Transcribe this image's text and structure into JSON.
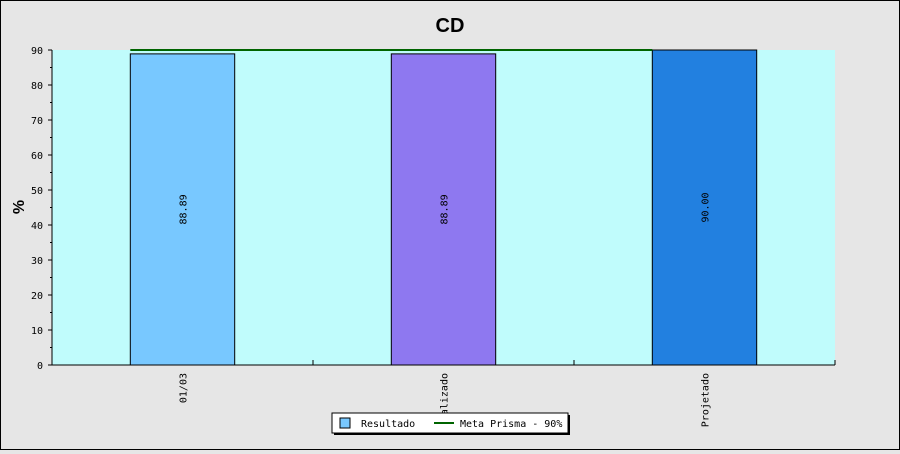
{
  "chart_data": {
    "type": "bar",
    "title": "CD",
    "ylabel": "%",
    "xlabel": "",
    "ylim": [
      0,
      90
    ],
    "yticks": [
      0,
      10,
      20,
      30,
      40,
      50,
      60,
      70,
      80,
      90
    ],
    "categories": [
      "01/03",
      "alizado",
      "Projetado"
    ],
    "values": [
      88.89,
      88.89,
      90.0
    ],
    "value_labels": [
      "88.89",
      "88.89",
      "90.00"
    ],
    "bar_colors": [
      "#78c8ff",
      "#8e78f0",
      "#2280e0"
    ],
    "plot_background": "#c0fcfc",
    "grid": false,
    "reference_line": {
      "name": "Meta Prisma - 90%",
      "value": 90,
      "color": "#006400"
    },
    "legend": {
      "placement": "bottom-center",
      "entries": [
        {
          "name": "Resultado",
          "kind": "box",
          "color": "#78c8ff"
        },
        {
          "name": "Meta Prisma - 90%",
          "kind": "line",
          "color": "#006400"
        }
      ]
    }
  }
}
